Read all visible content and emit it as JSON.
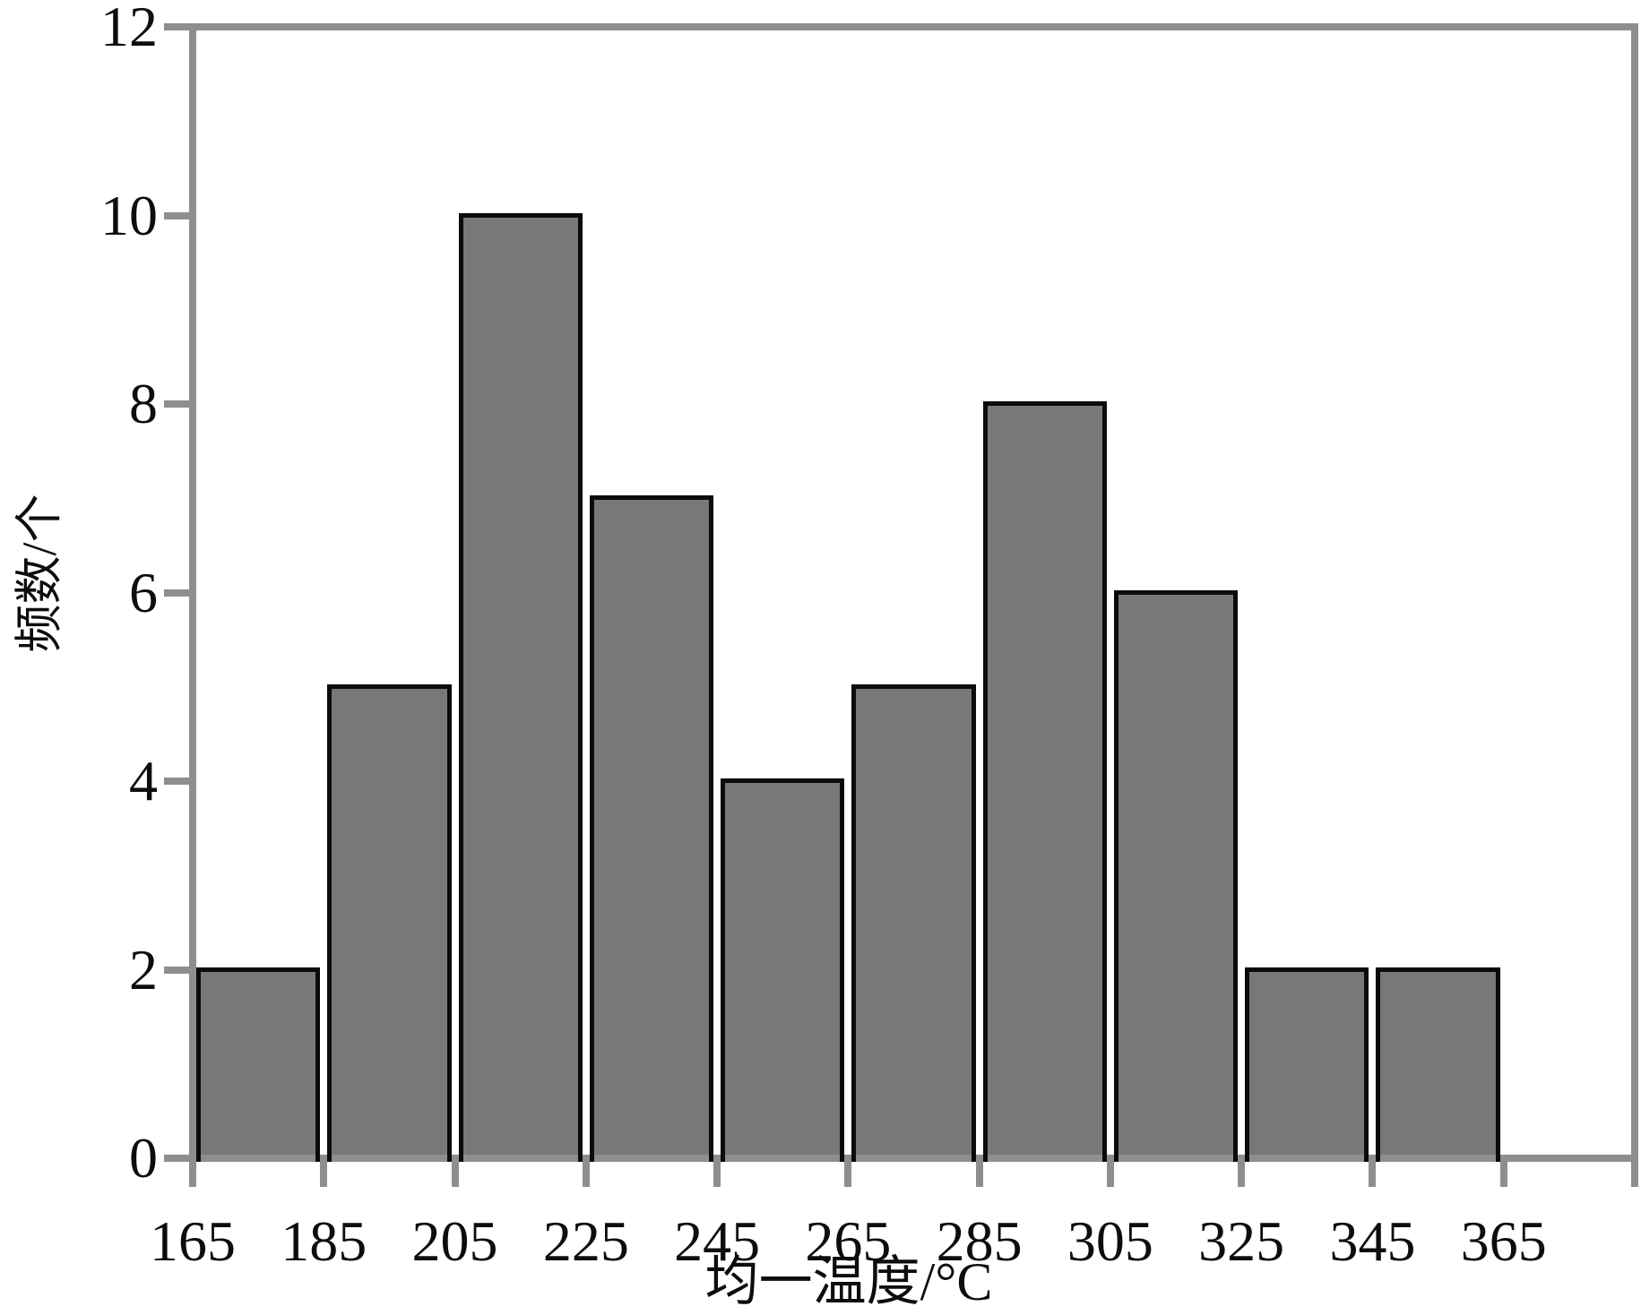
{
  "chart_data": {
    "type": "bar",
    "subtype": "histogram",
    "title": "",
    "xlabel": "均一温度/°C",
    "ylabel": "频数/个",
    "bin_start": 165,
    "bin_width": 20,
    "categories": [
      "165-185",
      "185-205",
      "205-225",
      "225-245",
      "245-265",
      "265-285",
      "285-305",
      "305-325",
      "325-345",
      "345-365"
    ],
    "values": [
      2,
      5,
      10,
      7,
      4,
      5,
      8,
      6,
      2,
      2
    ],
    "x_ticks": [
      165,
      185,
      205,
      225,
      245,
      265,
      285,
      305,
      325,
      345,
      365
    ],
    "y_ticks": [
      0,
      2,
      4,
      6,
      8,
      10,
      12
    ],
    "xlim": [
      165,
      385
    ],
    "ylim": [
      0,
      12
    ],
    "grid": false,
    "legend": null,
    "colors": {
      "bar_fill": "#787878",
      "bar_border": "#0b0b0b",
      "axis": "#8e8e8e",
      "text": "#0d0d0d",
      "background": "#ffffff"
    }
  }
}
